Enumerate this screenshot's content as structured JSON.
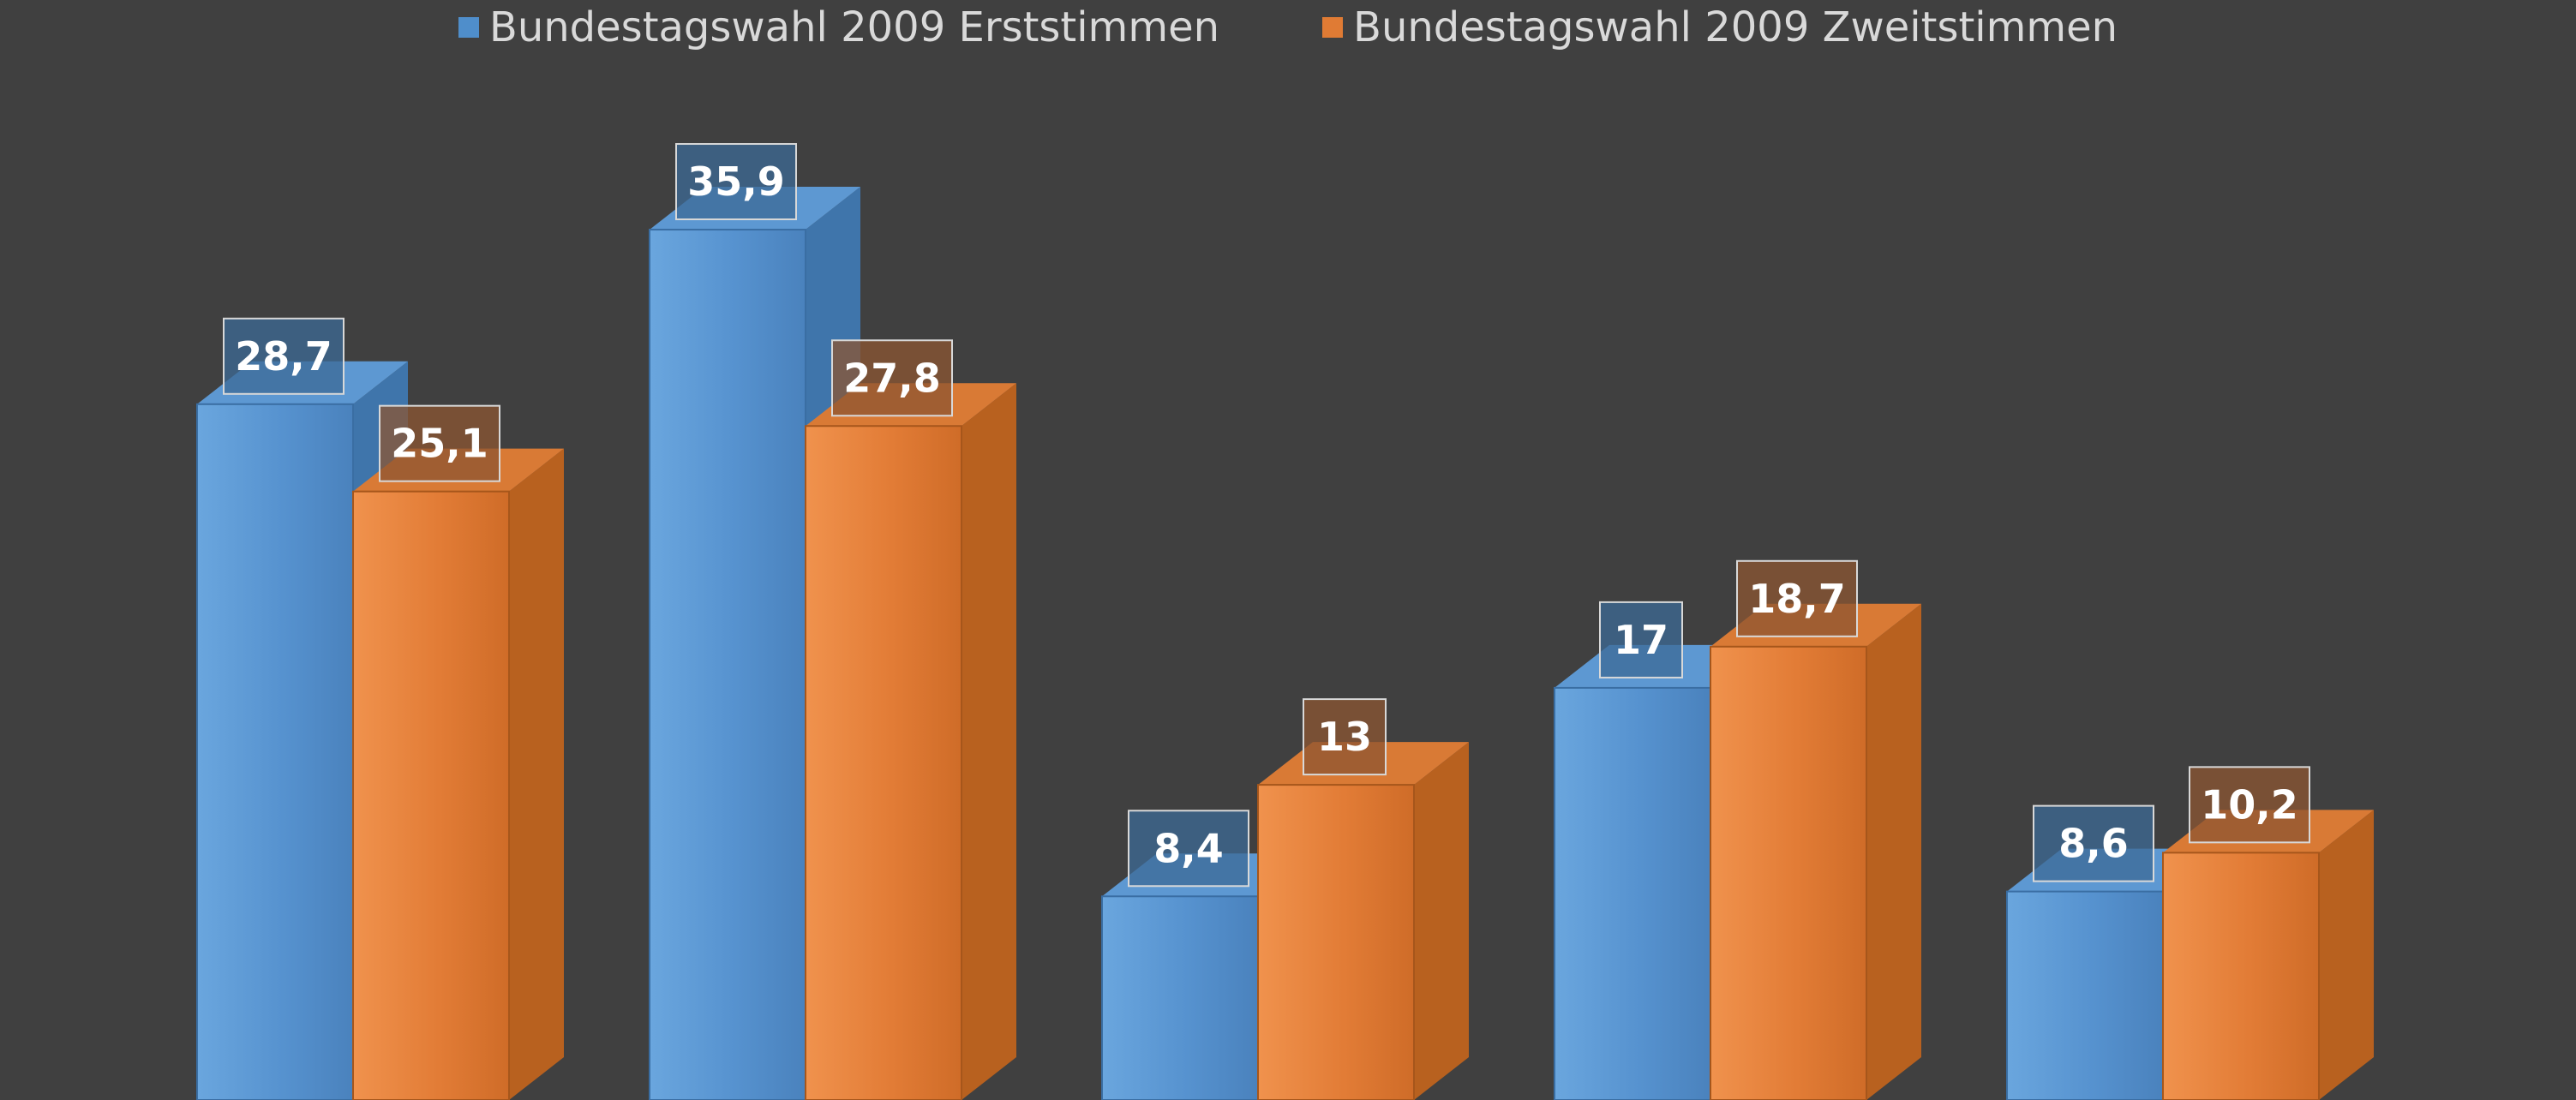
{
  "chart_data": {
    "type": "bar",
    "title": "",
    "xlabel": "",
    "ylabel": "",
    "ylim": [
      0,
      40
    ],
    "grid": false,
    "legend_position": "top",
    "three_d": true,
    "categories": [
      "",
      "",
      "",
      "",
      ""
    ],
    "series": [
      {
        "name": "Bundestagswahl 2009 Erststimmen",
        "color": "#4f8ecb",
        "values": [
          28.7,
          35.9,
          8.4,
          17,
          8.6
        ],
        "labels": [
          "28,7",
          "35,9",
          "8,4",
          "17",
          "8,6"
        ]
      },
      {
        "name": "Bundestagswahl 2009 Zweitstimmen",
        "color": "#e07b34",
        "values": [
          25.1,
          27.8,
          13,
          18.7,
          10.2
        ],
        "labels": [
          "25,1",
          "27,8",
          "13",
          "18,7",
          "10,2"
        ]
      }
    ]
  }
}
